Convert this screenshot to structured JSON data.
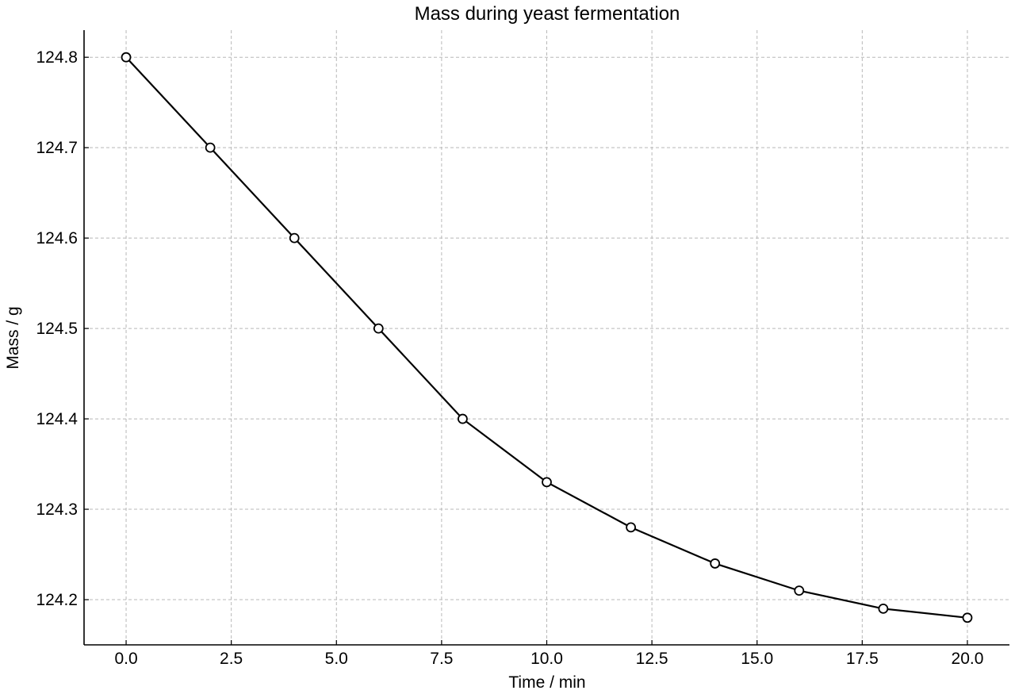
{
  "chart_data": {
    "type": "line",
    "title": "Mass during yeast fermentation",
    "xlabel": "Time / min",
    "ylabel": "Mass / g",
    "xlim": [
      -1.0,
      21.0
    ],
    "ylim": [
      124.15,
      124.83
    ],
    "x_ticks": [
      "0.0",
      "2.5",
      "5.0",
      "7.5",
      "10.0",
      "12.5",
      "15.0",
      "17.5",
      "20.0"
    ],
    "y_ticks": [
      "124.2",
      "124.3",
      "124.4",
      "124.5",
      "124.6",
      "124.7",
      "124.8"
    ],
    "grid": true,
    "x": [
      0,
      2,
      4,
      6,
      8,
      10,
      12,
      14,
      16,
      18,
      20
    ],
    "series": [
      {
        "values": [
          124.8,
          124.7,
          124.6,
          124.5,
          124.4,
          124.33,
          124.28,
          124.24,
          124.21,
          124.19,
          124.18
        ],
        "color": "#000000",
        "marker": "open-circle"
      }
    ]
  }
}
